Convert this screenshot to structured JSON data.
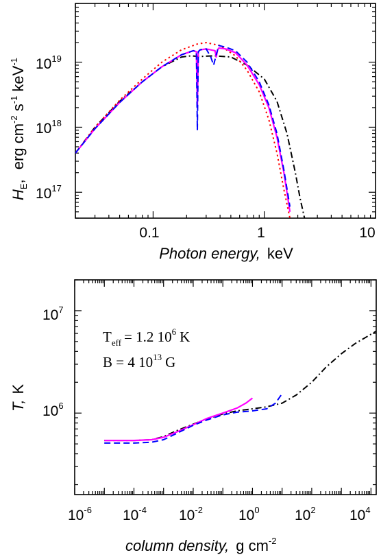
{
  "chart_data": [
    {
      "type": "line",
      "xscale": "log",
      "yscale": "log",
      "xlim": [
        0.02,
        10
      ],
      "ylim": [
        4e+16,
        8e+19
      ],
      "x_ticks": [
        {
          "value": 0.1,
          "label": "0.1"
        },
        {
          "value": 1,
          "label": "1"
        },
        {
          "value": 10,
          "label": "10"
        }
      ],
      "y_ticks": [
        {
          "value": 1e+17,
          "base": "10",
          "exp": "17"
        },
        {
          "value": 1e+18,
          "base": "10",
          "exp": "18"
        },
        {
          "value": 1e+19,
          "base": "10",
          "exp": "19"
        }
      ],
      "xlabel": {
        "italic": "Photon energy,",
        "unit": "keV"
      },
      "ylabel": {
        "symbol": "H",
        "sub": "E",
        "unit": "erg cm-2 s-1 keV-1"
      },
      "grid": false,
      "series": [
        {
          "style": "dash-dot",
          "color": "#000000",
          "x": [
            0.02,
            0.03,
            0.05,
            0.08,
            0.12,
            0.18,
            0.22,
            0.26,
            0.35,
            0.5,
            0.7,
            1.0,
            1.3,
            1.6,
            1.9,
            2.1,
            2.3
          ],
          "y": [
            4e+17,
            1e+18,
            2.5e+18,
            5e+18,
            8.5e+18,
            1.2e+19,
            1.25e+19,
            1.22e+19,
            1.25e+19,
            1.2e+19,
            9e+18,
            5.5e+18,
            2.5e+18,
            8e+17,
            2e+17,
            8e+16,
            4e+16
          ]
        },
        {
          "style": "dotted",
          "color": "#ff0000",
          "x": [
            0.02,
            0.03,
            0.05,
            0.08,
            0.12,
            0.18,
            0.25,
            0.3,
            0.4,
            0.55,
            0.7,
            0.9,
            1.1,
            1.3,
            1.5,
            1.7
          ],
          "y": [
            4e+17,
            1e+18,
            2.6e+18,
            5.5e+18,
            1e+19,
            1.55e+19,
            1.9e+19,
            2e+19,
            1.8e+19,
            1.25e+19,
            7.5e+18,
            3.5e+18,
            1.3e+18,
            4e+17,
            1.1e+17,
            4e+16
          ]
        },
        {
          "style": "solid",
          "color": "#ff00ff",
          "x": [
            0.02,
            0.03,
            0.05,
            0.08,
            0.12,
            0.18,
            0.23,
            0.245,
            0.25,
            0.255,
            0.265,
            0.3,
            0.36,
            0.37,
            0.38,
            0.39,
            0.45,
            0.55,
            0.7,
            0.9,
            1.1,
            1.3,
            1.5,
            1.7
          ],
          "y": [
            4e+17,
            9.5e+17,
            2.4e+18,
            5e+18,
            8.5e+18,
            1.3e+19,
            1.5e+19,
            1.45e+19,
            2e+18,
            1.45e+19,
            1.55e+19,
            1.6e+19,
            1.5e+19,
            1.2e+19,
            1.55e+19,
            1.65e+19,
            1.6e+19,
            1.4e+19,
            9e+18,
            4.5e+18,
            2e+18,
            7e+17,
            2e+17,
            5e+16
          ]
        },
        {
          "style": "dashed",
          "color": "#0000ff",
          "x": [
            0.02,
            0.03,
            0.05,
            0.08,
            0.12,
            0.18,
            0.23,
            0.245,
            0.25,
            0.255,
            0.265,
            0.3,
            0.33,
            0.35,
            0.37,
            0.39,
            0.45,
            0.55,
            0.7,
            0.9,
            1.1,
            1.3,
            1.5,
            1.7
          ],
          "y": [
            4e+17,
            9.5e+17,
            2.4e+18,
            5e+18,
            8.5e+18,
            1.3e+19,
            1.5e+19,
            1.45e+19,
            9e+17,
            1.45e+19,
            1.55e+19,
            1.6e+19,
            1.2e+19,
            9e+18,
            1.3e+19,
            1.8e+19,
            1.7e+19,
            1.5e+19,
            1e+19,
            5e+18,
            2.2e+18,
            8e+17,
            2.2e+17,
            6e+16
          ]
        }
      ]
    },
    {
      "type": "line",
      "xscale": "log",
      "yscale": "log",
      "xlim": [
        1e-06,
        15000.0
      ],
      "ylim": [
        160000.0,
        20000000.0
      ],
      "x_ticks": [
        {
          "value": 1e-06,
          "base": "10",
          "exp": "-6"
        },
        {
          "value": 0.0001,
          "base": "10",
          "exp": "-4"
        },
        {
          "value": 0.01,
          "base": "10",
          "exp": "-2"
        },
        {
          "value": 1,
          "base": "10",
          "exp": "0"
        },
        {
          "value": 100.0,
          "base": "10",
          "exp": "2"
        },
        {
          "value": 10000.0,
          "base": "10",
          "exp": "4"
        }
      ],
      "y_ticks": [
        {
          "value": 1000000.0,
          "base": "10",
          "exp": "6"
        },
        {
          "value": 10000000.0,
          "base": "10",
          "exp": "7"
        }
      ],
      "xlabel": {
        "italic": "column density,",
        "unit": "g cm-2"
      },
      "ylabel": {
        "symbol": "T,",
        "unit": "K"
      },
      "grid": false,
      "annotations": {
        "teff": {
          "label": "T",
          "sub": "eff",
          "value": "= 1.2 10",
          "exp": "6",
          "unit": "K"
        },
        "field": {
          "label": "B = 4 10",
          "exp": "13",
          "unit": "G"
        }
      },
      "series": [
        {
          "style": "dash-dot",
          "color": "#000000",
          "x": [
            1e-05,
            0.0001,
            0.0004,
            0.001,
            0.003,
            0.01,
            0.03,
            0.1,
            0.3,
            1,
            3,
            10,
            30,
            100,
            300,
            1000,
            3000,
            15000.0
          ],
          "y": [
            540000.0,
            540000.0,
            550000.0,
            590000.0,
            680000.0,
            780000.0,
            880000.0,
            980000.0,
            1050000.0,
            1100000.0,
            1150000.0,
            1250000.0,
            1500000.0,
            2000000.0,
            2800000.0,
            3800000.0,
            4800000.0,
            6300000.0
          ]
        },
        {
          "style": "solid",
          "color": "#ff00ff",
          "x": [
            1e-05,
            0.0001,
            0.0004,
            0.001,
            0.003,
            0.01,
            0.03,
            0.1,
            0.3,
            0.6,
            1
          ],
          "y": [
            540000.0,
            540000.0,
            550000.0,
            580000.0,
            660000.0,
            770000.0,
            890000.0,
            1000000.0,
            1120000.0,
            1250000.0,
            1400000.0
          ]
        },
        {
          "style": "dashed",
          "color": "#0000ff",
          "x": [
            1e-05,
            0.0001,
            0.0004,
            0.001,
            0.003,
            0.01,
            0.03,
            0.1,
            0.3,
            1,
            3,
            6,
            10
          ],
          "y": [
            510000.0,
            510000.0,
            520000.0,
            550000.0,
            640000.0,
            760000.0,
            860000.0,
            960000.0,
            1020000.0,
            1050000.0,
            1100000.0,
            1250000.0,
            1550000.0
          ]
        }
      ]
    }
  ]
}
